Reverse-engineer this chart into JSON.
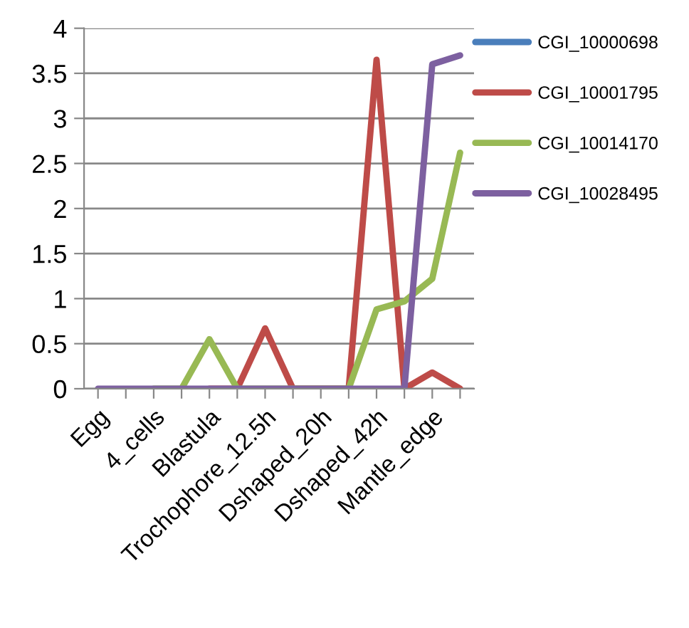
{
  "chart_data": {
    "type": "line",
    "categories": [
      "Egg",
      null,
      "4_cells",
      null,
      "Blastula",
      null,
      "Trochophore_12.5h",
      null,
      "Dshaped_20h",
      null,
      "Dshaped_42h",
      null,
      "Mantle_edge",
      null
    ],
    "series": [
      {
        "name": "CGI_10000698",
        "color": "#4a7ebb",
        "values": [
          null,
          null,
          null,
          null,
          null,
          null,
          null,
          null,
          null,
          null,
          null,
          null,
          null,
          null
        ]
      },
      {
        "name": "CGI_10001795",
        "color": "#be4b48",
        "values": [
          null,
          null,
          null,
          null,
          0,
          0,
          0.67,
          0,
          0,
          0,
          3.65,
          0,
          0.18,
          0
        ]
      },
      {
        "name": "CGI_10014170",
        "color": "#98b954",
        "values": [
          null,
          null,
          0,
          0,
          0.55,
          0,
          0,
          0,
          0,
          0,
          0.88,
          0.97,
          1.22,
          2.62
        ]
      },
      {
        "name": "CGI_10028495",
        "color": "#7d60a0",
        "values": [
          0,
          0,
          0,
          0,
          0,
          0,
          0,
          0,
          0,
          0,
          0,
          0,
          3.6,
          3.7
        ]
      }
    ],
    "ylim": [
      0,
      4
    ],
    "yticks": [
      0,
      0.5,
      1,
      1.5,
      2,
      2.5,
      3,
      3.5,
      4
    ],
    "grid": "y",
    "legend": "right",
    "marker": "none",
    "line_style": "solid"
  }
}
